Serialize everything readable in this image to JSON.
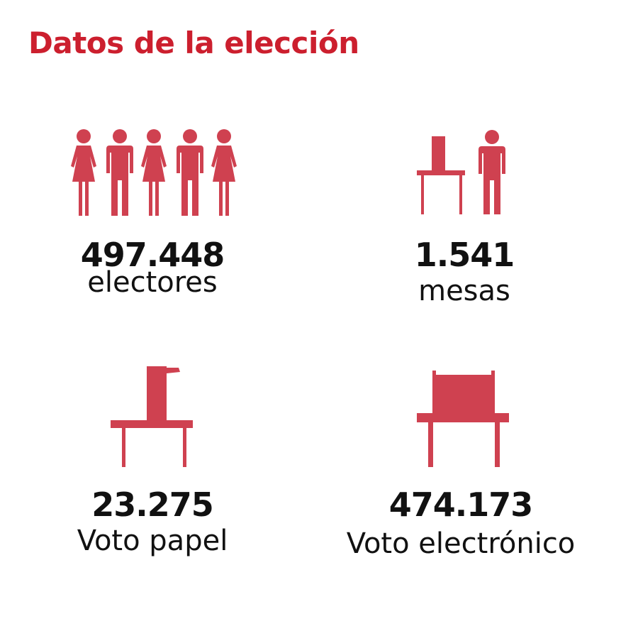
{
  "title": "Datos de la elección",
  "colors": {
    "title": "#cc1f2e",
    "icon": "#cf4150",
    "text": "#111111"
  },
  "stats": [
    {
      "value": "497.448",
      "label": "electores",
      "icon": "people-group-icon"
    },
    {
      "value": "1.541",
      "label": "mesas",
      "icon": "table-chair-person-icon"
    },
    {
      "value": "23.275",
      "label": "Voto papel",
      "icon": "ballot-box-table-icon"
    },
    {
      "value": "474.173",
      "label": "Voto electrónico",
      "icon": "electronic-voting-machine-icon"
    }
  ]
}
